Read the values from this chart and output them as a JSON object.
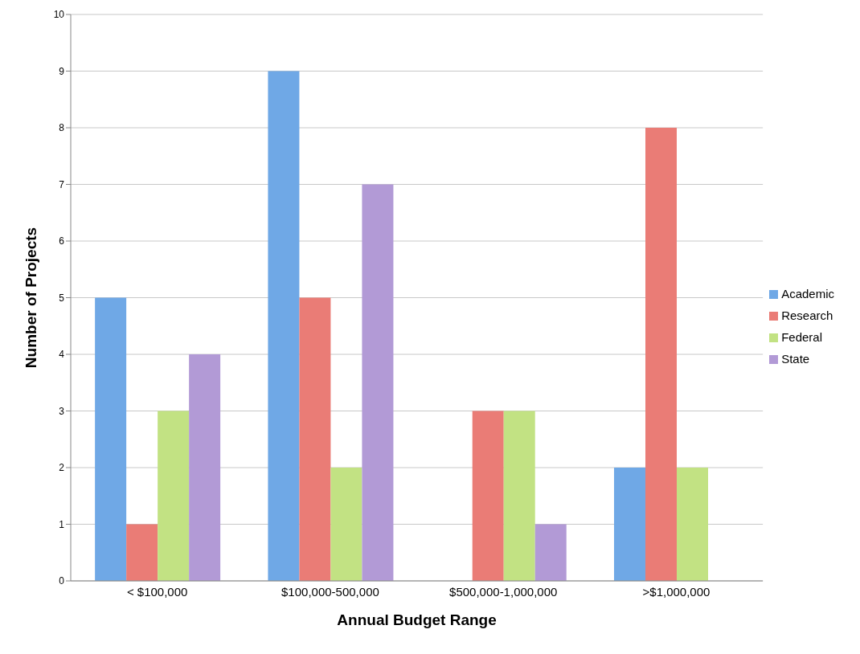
{
  "chart_data": {
    "type": "bar",
    "xlabel": "Annual Budget Range",
    "ylabel": "Number of Projects",
    "categories": [
      "< $100,000",
      "$100,000-500,000",
      "$500,000-1,000,000",
      ">$1,000,000"
    ],
    "series": [
      {
        "name": "Academic",
        "color": "#6fa8e6",
        "values": [
          5,
          9,
          0,
          2
        ]
      },
      {
        "name": "Research",
        "color": "#ea7c76",
        "values": [
          1,
          5,
          3,
          8
        ]
      },
      {
        "name": "Federal",
        "color": "#c2e283",
        "values": [
          3,
          2,
          3,
          2
        ]
      },
      {
        "name": "State",
        "color": "#b29ad6",
        "values": [
          4,
          7,
          1,
          0
        ]
      }
    ],
    "ylim": [
      0,
      10
    ],
    "yticks": [
      0,
      1,
      2,
      3,
      4,
      5,
      6,
      7,
      8,
      9,
      10
    ],
    "grid": "y",
    "legend": "right"
  }
}
